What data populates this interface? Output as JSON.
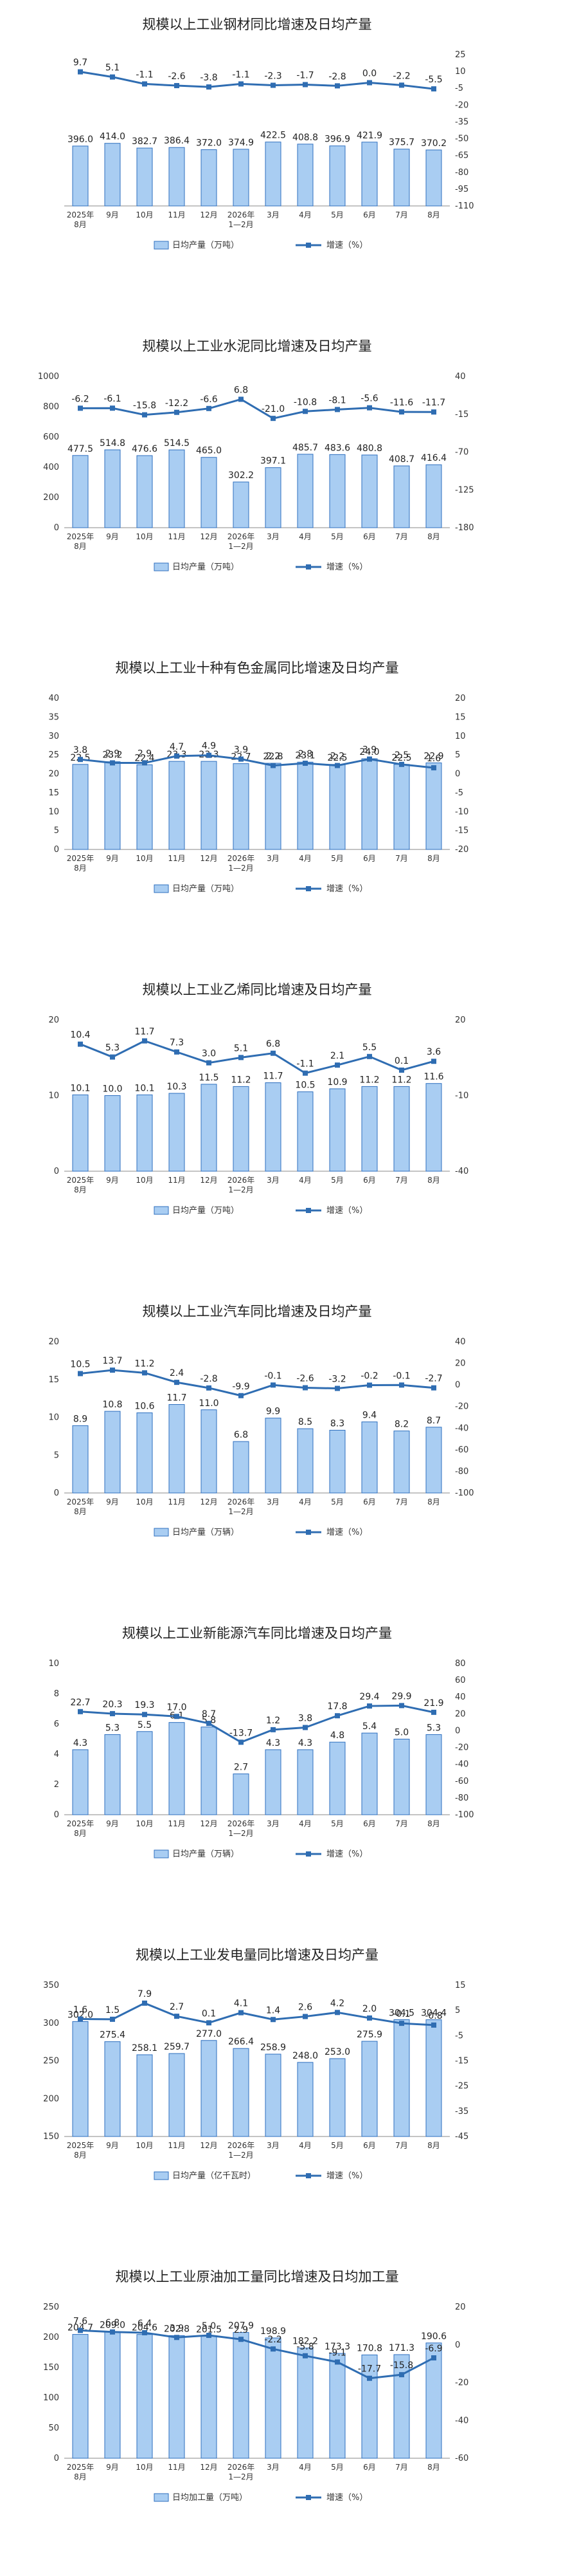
{
  "colors": {
    "bar_fill": "#a9cdf2",
    "bar_stroke": "#2e6fbf",
    "line": "#2f6db2",
    "marker": "#2f6db2",
    "text": "#222222",
    "axis": "#888888"
  },
  "chart_data": [
    {
      "type": "bar+line",
      "title": "规模以上工业钢材同比增速及日均产量",
      "categories": [
        "2025年|8月",
        "9月",
        "10月",
        "11月",
        "12月",
        "2026年|1—2月",
        "3月",
        "4月",
        "5月",
        "6月",
        "7月",
        "8月"
      ],
      "bar_series": {
        "name": "日均产量（万吨）",
        "values": [
          396.0,
          414.0,
          382.7,
          386.4,
          372.0,
          374.9,
          422.5,
          408.8,
          396.9,
          421.9,
          375.7,
          370.2
        ]
      },
      "line_series": {
        "name": "增速（%）",
        "values": [
          9.7,
          5.1,
          -1.1,
          -2.6,
          -3.8,
          -1.1,
          -2.3,
          -1.7,
          -2.8,
          0.0,
          -2.2,
          -5.5
        ]
      },
      "left_axis": {
        "ticks": [],
        "range": [
          0,
          1000
        ]
      },
      "right_axis": {
        "ticks": [
          25,
          10,
          -5,
          -20,
          -35,
          -50,
          -65,
          -80,
          -95,
          -110
        ],
        "range": [
          -110,
          25
        ]
      }
    },
    {
      "type": "bar+line",
      "title": "规模以上工业水泥同比增速及日均产量",
      "categories": [
        "2025年|8月",
        "9月",
        "10月",
        "11月",
        "12月",
        "2026年|1—2月",
        "3月",
        "4月",
        "5月",
        "6月",
        "7月",
        "8月"
      ],
      "bar_series": {
        "name": "日均产量（万吨）",
        "values": [
          477.5,
          514.8,
          476.6,
          514.5,
          465.0,
          302.2,
          397.1,
          485.7,
          483.6,
          480.8,
          408.7,
          416.4
        ]
      },
      "line_series": {
        "name": "增速（%）",
        "values": [
          -6.2,
          -6.1,
          -15.8,
          -12.2,
          -6.6,
          6.8,
          -21.0,
          -10.8,
          -8.1,
          -5.6,
          -11.6,
          -11.7
        ]
      },
      "left_axis": {
        "ticks": [
          0,
          200,
          400,
          600,
          800,
          1000
        ],
        "range": [
          0,
          1000
        ]
      },
      "right_axis": {
        "ticks": [
          40,
          -15,
          -70,
          -125,
          -180
        ],
        "range": [
          -180,
          40
        ]
      }
    },
    {
      "type": "bar+line",
      "title": "规模以上工业十种有色金属同比增速及日均产量",
      "categories": [
        "2025年|8月",
        "9月",
        "10月",
        "11月",
        "12月",
        "2026年|1—2月",
        "3月",
        "4月",
        "5月",
        "6月",
        "7月",
        "8月"
      ],
      "bar_series": {
        "name": "日均产量（万吨）",
        "values": [
          22.5,
          23.2,
          22.4,
          23.3,
          23.3,
          22.7,
          22.8,
          23.1,
          22.5,
          24.0,
          22.5,
          22.9
        ]
      },
      "line_series": {
        "name": "增速（%）",
        "values": [
          3.8,
          2.9,
          2.9,
          4.7,
          4.9,
          3.9,
          2.2,
          2.8,
          2.2,
          3.9,
          2.5,
          1.6
        ]
      },
      "left_axis": {
        "ticks": [
          0,
          5,
          10,
          15,
          20,
          25,
          30,
          35,
          40
        ],
        "range": [
          0,
          40
        ]
      },
      "right_axis": {
        "ticks": [
          20,
          15,
          10,
          5,
          0,
          -5,
          -10,
          -15,
          -20
        ],
        "range": [
          -20,
          20
        ]
      }
    },
    {
      "type": "bar+line",
      "title": "规模以上工业乙烯同比增速及日均产量",
      "categories": [
        "2025年|8月",
        "9月",
        "10月",
        "11月",
        "12月",
        "2026年|1—2月",
        "3月",
        "4月",
        "5月",
        "6月",
        "7月",
        "8月"
      ],
      "bar_series": {
        "name": "日均产量（万吨）",
        "values": [
          10.1,
          10.0,
          10.1,
          10.3,
          11.5,
          11.2,
          11.7,
          10.5,
          10.9,
          11.2,
          11.2,
          11.6
        ]
      },
      "line_series": {
        "name": "增速（%）",
        "values": [
          10.4,
          5.3,
          11.7,
          7.3,
          3.0,
          5.1,
          6.8,
          -1.1,
          2.1,
          5.5,
          0.1,
          3.6
        ]
      },
      "left_axis": {
        "ticks": [
          0,
          10,
          20
        ],
        "range": [
          0,
          20
        ]
      },
      "right_axis": {
        "ticks": [
          20,
          -10,
          -40
        ],
        "range": [
          -40,
          20
        ]
      }
    },
    {
      "type": "bar+line",
      "title": "规模以上工业汽车同比增速及日均产量",
      "categories": [
        "2025年|8月",
        "9月",
        "10月",
        "11月",
        "12月",
        "2026年|1—2月",
        "3月",
        "4月",
        "5月",
        "6月",
        "7月",
        "8月"
      ],
      "bar_series": {
        "name": "日均产量（万辆）",
        "values": [
          8.9,
          10.8,
          10.6,
          11.7,
          11.0,
          6.8,
          9.9,
          8.5,
          8.3,
          9.4,
          8.2,
          8.7
        ]
      },
      "line_series": {
        "name": "增速（%）",
        "values": [
          10.5,
          13.7,
          11.2,
          2.4,
          -2.8,
          -9.9,
          -0.1,
          -2.6,
          -3.2,
          -0.2,
          -0.1,
          -2.7
        ]
      },
      "left_axis": {
        "ticks": [
          0,
          5,
          10,
          15,
          20
        ],
        "range": [
          0,
          20
        ]
      },
      "right_axis": {
        "ticks": [
          40,
          20,
          0,
          -20,
          -40,
          -60,
          -80,
          -100
        ],
        "range": [
          -100,
          40
        ]
      }
    },
    {
      "type": "bar+line",
      "title": "规模以上工业新能源汽车同比增速及日均产量",
      "categories": [
        "2025年|8月",
        "9月",
        "10月",
        "11月",
        "12月",
        "2026年|1—2月",
        "3月",
        "4月",
        "5月",
        "6月",
        "7月",
        "8月"
      ],
      "bar_series": {
        "name": "日均产量（万辆）",
        "values": [
          4.3,
          5.3,
          5.5,
          6.1,
          5.8,
          2.7,
          4.3,
          4.3,
          4.8,
          5.4,
          5.0,
          5.3
        ]
      },
      "line_series": {
        "name": "增速（%）",
        "values": [
          22.7,
          20.3,
          19.3,
          17.0,
          8.7,
          -13.7,
          1.2,
          3.8,
          17.8,
          29.4,
          29.9,
          21.9
        ]
      },
      "left_axis": {
        "ticks": [
          0,
          2,
          4,
          6,
          8,
          10
        ],
        "range": [
          0,
          10
        ]
      },
      "right_axis": {
        "ticks": [
          80,
          60,
          40,
          20,
          0,
          -20,
          -40,
          -60,
          -80,
          -100
        ],
        "range": [
          -100,
          80
        ]
      }
    },
    {
      "type": "bar+line",
      "title": "规模以上工业发电量同比增速及日均产量",
      "categories": [
        "2025年|8月",
        "9月",
        "10月",
        "11月",
        "12月",
        "2026年|1—2月",
        "3月",
        "4月",
        "5月",
        "6月",
        "7月",
        "8月"
      ],
      "bar_series": {
        "name": "日均产量（亿千瓦时）",
        "values": [
          302.0,
          275.4,
          258.1,
          259.7,
          277.0,
          266.4,
          258.9,
          248.0,
          253.0,
          275.9,
          304.5,
          304.4
        ]
      },
      "line_series": {
        "name": "增速（%）",
        "values": [
          1.6,
          1.5,
          7.9,
          2.7,
          0.1,
          4.1,
          1.4,
          2.6,
          4.2,
          2.0,
          -0.1,
          -0.8
        ]
      },
      "left_axis": {
        "ticks": [
          150,
          200,
          250,
          300,
          350
        ],
        "range": [
          150,
          350
        ]
      },
      "right_axis": {
        "ticks": [
          15,
          5,
          -5,
          -15,
          -25,
          -35,
          -45
        ],
        "range": [
          -45,
          15
        ]
      }
    },
    {
      "type": "bar+line",
      "title": "规模以上工业原油加工量同比增速及日均加工量",
      "categories": [
        "2025年|8月",
        "9月",
        "10月",
        "11月",
        "12月",
        "2026年|1—2月",
        "3月",
        "4月",
        "5月",
        "6月",
        "7月",
        "8月"
      ],
      "bar_series": {
        "name": "日均加工量（万吨）",
        "values": [
          204.7,
          209.0,
          204.6,
          202.8,
          201.5,
          207.9,
          198.9,
          182.2,
          173.3,
          170.8,
          171.3,
          190.6
        ]
      },
      "line_series": {
        "name": "增速（%）",
        "values": [
          7.6,
          6.8,
          6.4,
          3.9,
          5.0,
          2.9,
          -2.2,
          -5.8,
          -9.1,
          -17.7,
          -15.8,
          -6.9
        ]
      },
      "left_axis": {
        "ticks": [
          0,
          50,
          100,
          150,
          200,
          250
        ],
        "range": [
          0,
          250
        ]
      },
      "right_axis": {
        "ticks": [
          20,
          0,
          -20,
          -40,
          -60
        ],
        "range": [
          -60,
          20
        ]
      }
    }
  ]
}
